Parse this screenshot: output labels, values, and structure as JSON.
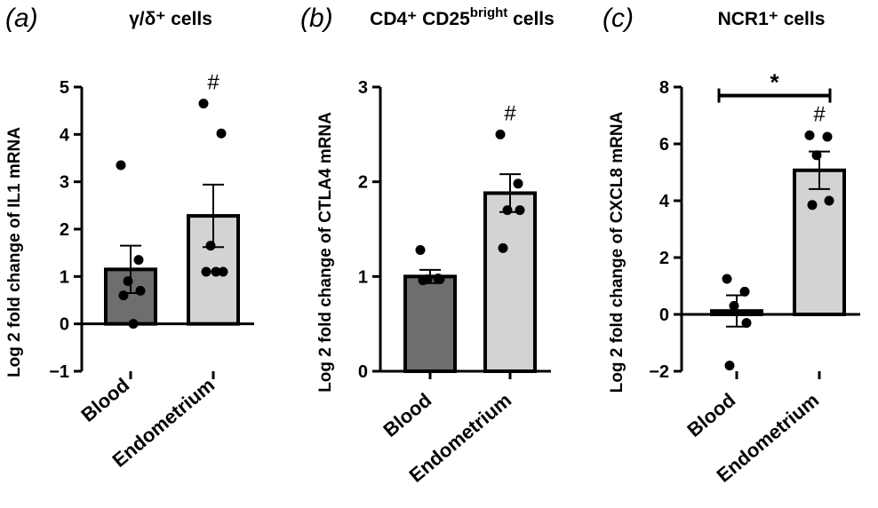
{
  "chart_data": [
    {
      "type": "bar",
      "panel_letter": "(a)",
      "title": "γ/δ⁺ cells",
      "ylabel": "Log 2 fold change of IL1 mRNA",
      "xlabel": "",
      "categories": [
        "Blood",
        "Endometrium"
      ],
      "values": [
        1.15,
        2.28
      ],
      "error_sem": [
        0.5,
        0.66
      ],
      "points": [
        [
          3.35,
          1.35,
          0.9,
          0.7,
          0.6,
          0.0
        ],
        [
          4.65,
          4.02,
          1.65,
          1.1,
          1.1,
          1.1
        ]
      ],
      "bar_colors": [
        "#6e6e6e",
        "#d3d3d3"
      ],
      "ylim": [
        -1,
        5
      ],
      "yticks": [
        -1,
        0,
        1,
        2,
        3,
        4,
        5
      ],
      "ytick_labels": [
        "−1",
        "0",
        "1",
        "2",
        "3",
        "4",
        "5"
      ],
      "annotations": [
        {
          "category": "Endometrium",
          "text": "#"
        }
      ],
      "significance": null
    },
    {
      "type": "bar",
      "panel_letter": "(b)",
      "title": "CD4⁺ CD25",
      "title_sup": "bright",
      "title_tail": " cells",
      "ylabel": "Log 2 fold change of CTLA4 mRNA",
      "xlabel": "",
      "categories": [
        "Blood",
        "Endometrium"
      ],
      "values": [
        1.0,
        1.88
      ],
      "error_sem": [
        0.07,
        0.2
      ],
      "points": [
        [
          1.28,
          0.98,
          0.97,
          0.97,
          0.96
        ],
        [
          2.5,
          1.98,
          1.7,
          1.7,
          1.3
        ]
      ],
      "bar_colors": [
        "#6e6e6e",
        "#d3d3d3"
      ],
      "ylim": [
        0,
        3
      ],
      "yticks": [
        0,
        1,
        2,
        3
      ],
      "ytick_labels": [
        "0",
        "1",
        "2",
        "3"
      ],
      "annotations": [
        {
          "category": "Endometrium",
          "text": "#"
        }
      ],
      "significance": null
    },
    {
      "type": "bar",
      "panel_letter": "(c)",
      "title": "NCR1⁺ cells",
      "ylabel": "Log 2 fold change of CXCL8 mRNA",
      "xlabel": "",
      "categories": [
        "Blood",
        "Endometrium"
      ],
      "values": [
        0.12,
        5.07
      ],
      "error_sem": [
        0.55,
        0.66
      ],
      "points": [
        [
          1.25,
          0.8,
          0.3,
          -0.3,
          -1.8
        ],
        [
          6.3,
          6.25,
          5.6,
          4.0,
          3.85
        ]
      ],
      "bar_colors": [
        "#6e6e6e",
        "#d3d3d3"
      ],
      "ylim": [
        -2,
        8
      ],
      "yticks": [
        -2,
        0,
        2,
        4,
        6,
        8
      ],
      "ytick_labels": [
        "−2",
        "0",
        "2",
        "4",
        "6",
        "8"
      ],
      "annotations": [
        {
          "category": "Endometrium",
          "text": "#"
        }
      ],
      "significance": {
        "from": "Blood",
        "to": "Endometrium",
        "y": 7.7,
        "text": "*"
      }
    }
  ]
}
